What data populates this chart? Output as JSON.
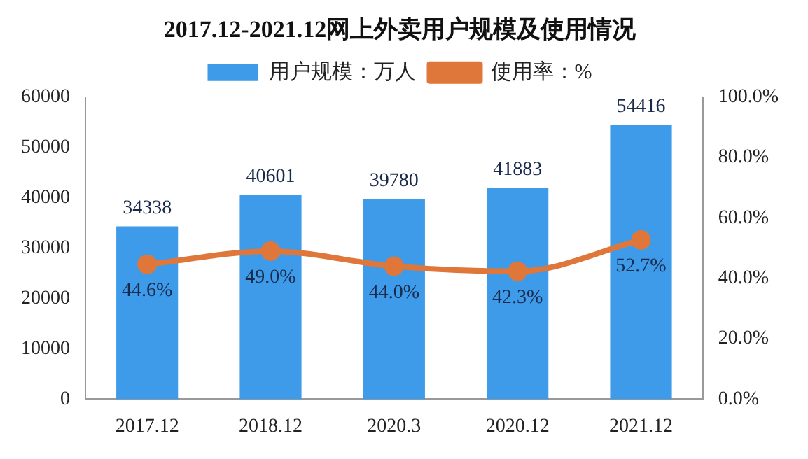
{
  "chart_data": {
    "type": "bar",
    "title": "2017.12-2021.12网上外卖用户规模及使用情况",
    "categories": [
      "2017.12",
      "2018.12",
      "2020.3",
      "2020.12",
      "2021.12"
    ],
    "series": [
      {
        "name": "用户规模：万人",
        "color": "#3d9be9",
        "values": [
          34338,
          40601,
          39780,
          41883,
          54416
        ]
      },
      {
        "name": "使用率：%",
        "type": "line",
        "axis": "y2",
        "color": "#e0773a",
        "values": [
          44.6,
          49.0,
          44.0,
          42.3,
          52.7
        ],
        "value_labels": [
          "44.6%",
          "49.0%",
          "44.0%",
          "42.3%",
          "52.7%"
        ]
      }
    ],
    "ylim": [
      0,
      60000
    ],
    "yticks": [
      0,
      10000,
      20000,
      30000,
      40000,
      50000,
      60000
    ],
    "y2lim": [
      0,
      100
    ],
    "y2ticks": [
      {
        "value": 0,
        "label": "0.0%"
      },
      {
        "value": 20,
        "label": "20.0%"
      },
      {
        "value": 40,
        "label": "40.0%"
      },
      {
        "value": 60,
        "label": "60.0%"
      },
      {
        "value": 80,
        "label": "80.0%"
      },
      {
        "value": 100,
        "label": "100.0%"
      }
    ],
    "data_labels": true,
    "legend": "top",
    "grid": false,
    "marker": "circle"
  }
}
